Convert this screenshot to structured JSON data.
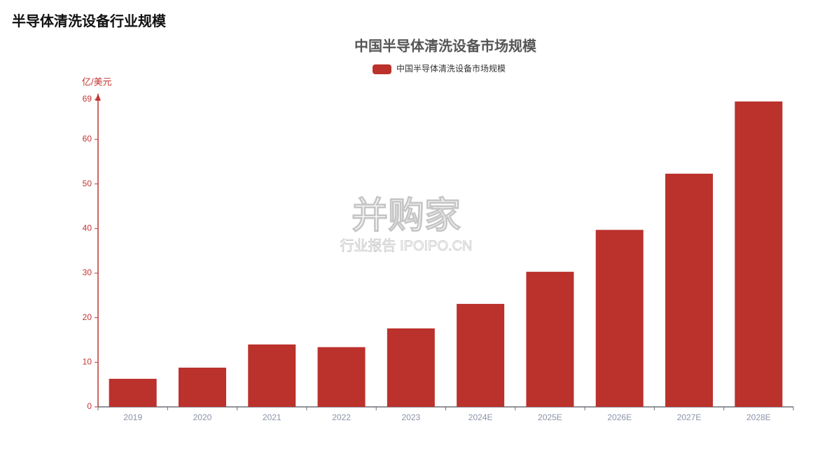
{
  "header": {
    "title": "半导体清洗设备行业规模"
  },
  "watermark": {
    "brand": "并购家",
    "sub": "行业报告 IPOIPO.CN"
  },
  "chart_data": {
    "type": "bar",
    "title": "中国半导体清洗设备市场规模",
    "y_label": "亿/美元",
    "categories": [
      "2019",
      "2020",
      "2021",
      "2022",
      "2023",
      "2024E",
      "2025E",
      "2026E",
      "2027E",
      "2028E"
    ],
    "series": [
      {
        "name": "中国半导体清洗设备市场规模",
        "color": "#bb312c",
        "values": [
          6.3,
          8.8,
          14.0,
          13.4,
          17.6,
          23.1,
          30.3,
          39.7,
          52.3,
          68.5
        ]
      }
    ],
    "ylim": [
      0,
      69
    ],
    "yticks": [
      0,
      10,
      20,
      30,
      40,
      50,
      60,
      69
    ],
    "grid": false,
    "legend": "top"
  }
}
